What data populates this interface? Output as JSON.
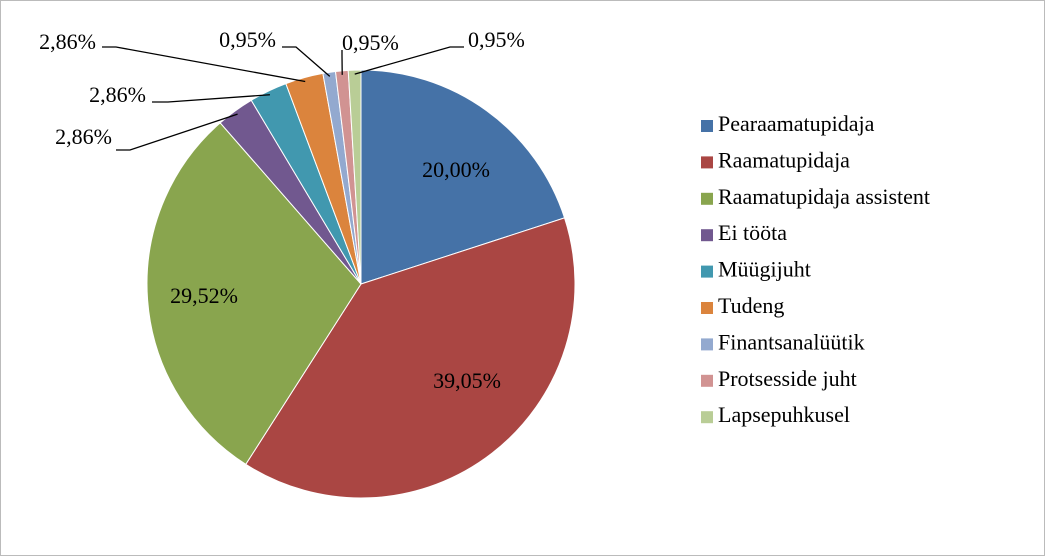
{
  "chart_data": {
    "type": "pie",
    "categories": [
      "Pearaamatupidaja",
      "Raamatupidaja",
      "Raamatupidaja assistent",
      "Ei tööta",
      "Müügijuht",
      "Tudeng",
      "Finantsanalüütik",
      "Protsesside juht",
      "Lapsepuhkusel"
    ],
    "values": [
      20.0,
      39.05,
      29.52,
      2.86,
      2.86,
      2.86,
      0.95,
      0.95,
      0.95
    ],
    "value_labels": [
      "20,00%",
      "39,05%",
      "29,52%",
      "2,86%",
      "2,86%",
      "2,86%",
      "0,95%",
      "0,95%",
      "0,95%"
    ],
    "colors": [
      "#4572a7",
      "#aa4643",
      "#89a54e",
      "#71588f",
      "#4198af",
      "#db843d",
      "#93a9cf",
      "#d19392",
      "#b9cd96"
    ],
    "legend": "right"
  }
}
